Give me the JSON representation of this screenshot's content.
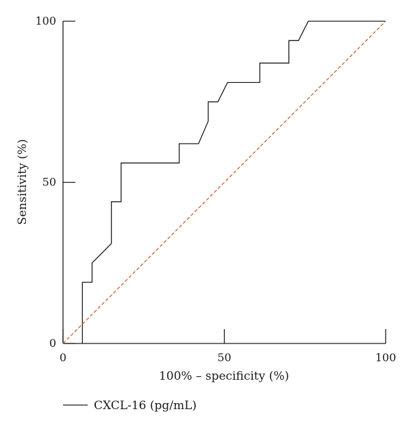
{
  "chart_data": {
    "type": "line",
    "xlabel": "100% – specificity (%)",
    "ylabel": "Sensitivity (%)",
    "xlim": [
      0,
      100
    ],
    "ylim": [
      0,
      100
    ],
    "xticks": [
      0,
      50,
      100
    ],
    "yticks": [
      0,
      50,
      100
    ],
    "grid": false,
    "legend_position": "bottom-left",
    "series": [
      {
        "name": "CXCL-16 (pg/mL)",
        "color": "#1a1a1a",
        "style": "solid",
        "x": [
          6,
          6,
          9,
          9,
          15,
          15,
          18,
          18,
          36,
          36,
          42,
          45,
          45,
          48,
          51,
          61,
          61,
          70,
          70,
          73,
          76,
          100
        ],
        "y": [
          0,
          19,
          19,
          25,
          31,
          44,
          44,
          56,
          56,
          62,
          62,
          69,
          75,
          75,
          81,
          81,
          87,
          87,
          94,
          94,
          100,
          100
        ]
      },
      {
        "name": "",
        "color": "#d4592a",
        "style": "dashed",
        "x": [
          0,
          100
        ],
        "y": [
          0,
          100
        ]
      }
    ]
  }
}
